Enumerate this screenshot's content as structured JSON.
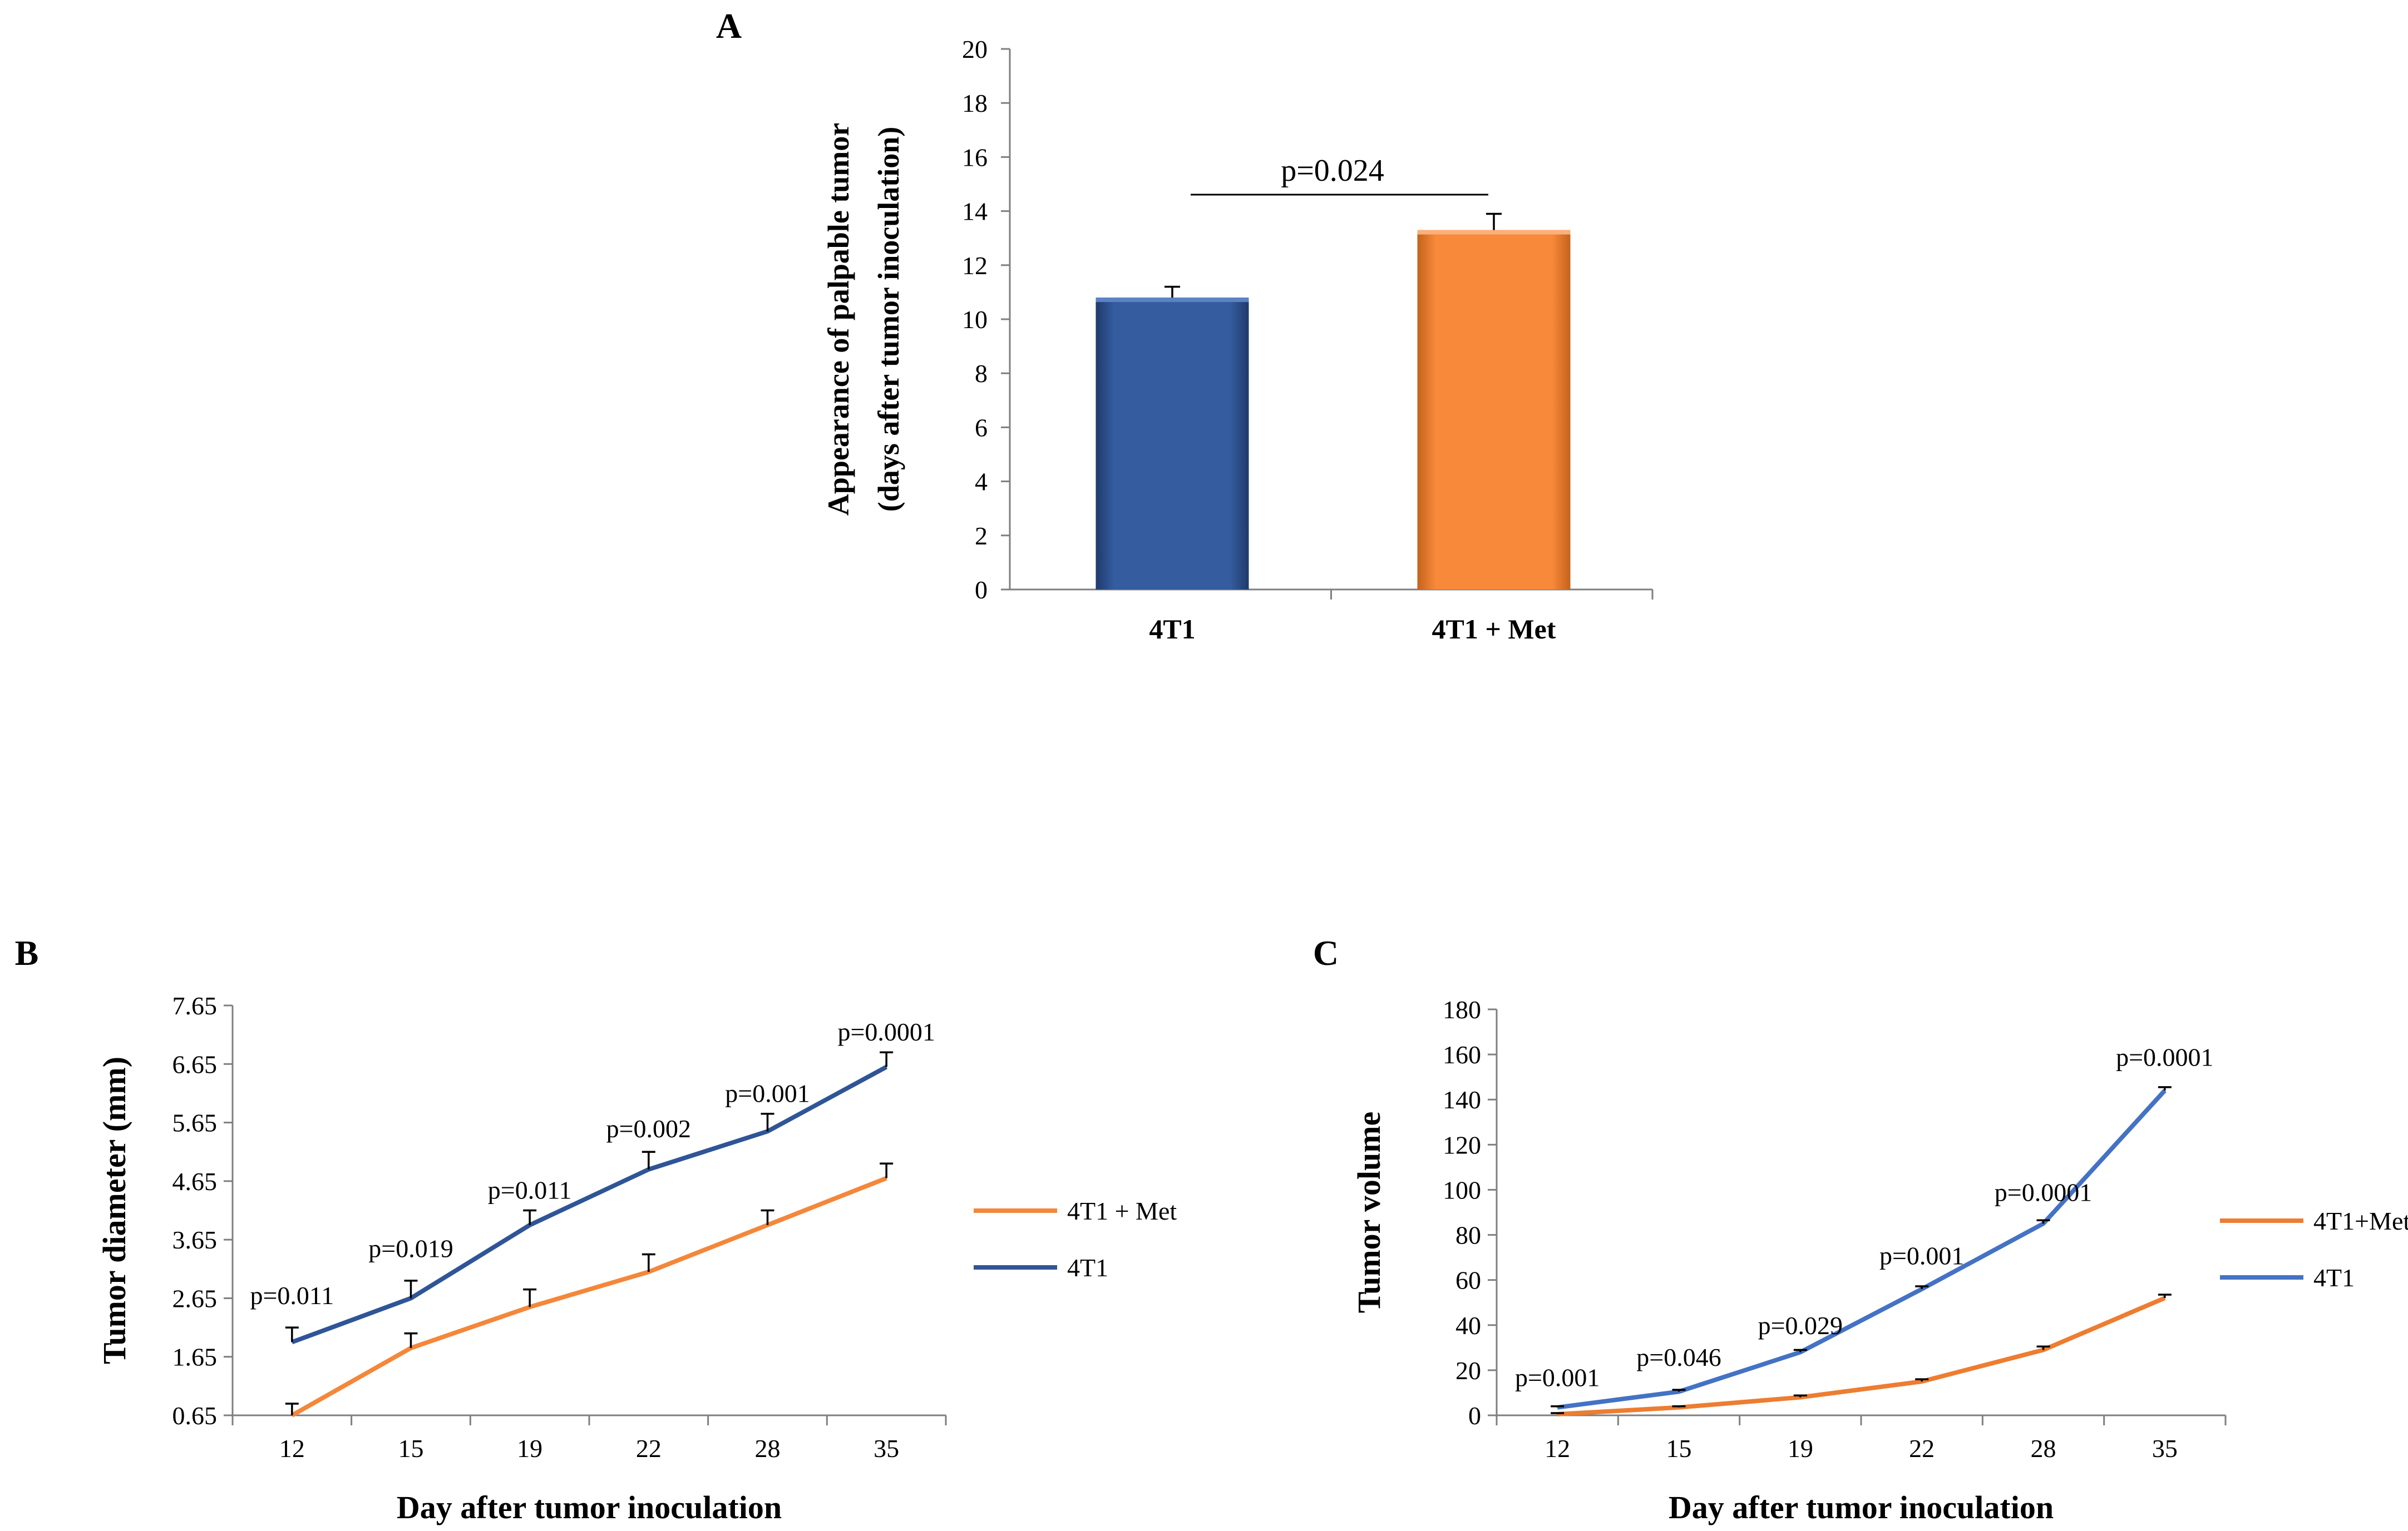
{
  "colors": {
    "blue_bar": "#345c9f",
    "orange_bar": "#f8893a",
    "blue_line": "#2f5597",
    "orange_line": "#f4873a",
    "blue_line_c": "#4472c4",
    "orange_line_c": "#ed7d31"
  },
  "chart_data": [
    {
      "panel": "A",
      "type": "bar",
      "ylabel_line1": "Appearance  of  palpable  tumor",
      "ylabel_line2": "(days after tumor inoculation)",
      "xlabel": "",
      "categories": [
        "4T1",
        "4T1 + Met"
      ],
      "values": [
        10.8,
        13.3
      ],
      "errors": [
        0.4,
        0.6
      ],
      "ylim": [
        0,
        20
      ],
      "yticks": [
        0,
        2,
        4,
        6,
        8,
        10,
        12,
        14,
        16,
        18,
        20
      ],
      "grid": false,
      "annotations": [
        {
          "text": "p=0.024",
          "between": [
            "4T1",
            "4T1 + Met"
          ]
        }
      ]
    },
    {
      "panel": "B",
      "type": "line",
      "ylabel": "Tumor diameter (mm)",
      "xlabel": "Day after tumor inoculation",
      "x": [
        "12",
        "15",
        "19",
        "22",
        "28",
        "35"
      ],
      "ylim": [
        0.65,
        7.65
      ],
      "yticks": [
        "0.65",
        "1.65",
        "2.65",
        "3.65",
        "4.65",
        "5.65",
        "6.65",
        "7.65"
      ],
      "grid": false,
      "legend_position": "right",
      "series": [
        {
          "name": "4T1 + Met",
          "values": [
            0.65,
            1.8,
            2.5,
            3.1,
            3.9,
            4.7
          ],
          "errors": [
            0.2,
            0.25,
            0.3,
            0.3,
            0.25,
            0.25
          ]
        },
        {
          "name": "4T1",
          "values": [
            1.9,
            2.65,
            3.9,
            4.85,
            5.5,
            6.6
          ],
          "errors": [
            0.25,
            0.3,
            0.25,
            0.3,
            0.3,
            0.25
          ]
        }
      ],
      "p_values": [
        "p=0.011",
        "p=0.019",
        "p=0.011",
        "p=0.002",
        "p=0.001",
        "p=0.0001"
      ]
    },
    {
      "panel": "C",
      "type": "line",
      "ylabel": "Tumor volume",
      "xlabel": "Day after tumor inoculation",
      "x": [
        "12",
        "15",
        "19",
        "22",
        "28",
        "35"
      ],
      "ylim": [
        0,
        180
      ],
      "yticks": [
        "0",
        "20",
        "40",
        "60",
        "80",
        "100",
        "120",
        "140",
        "160",
        "180"
      ],
      "grid": false,
      "legend_position": "right",
      "series": [
        {
          "name": "4T1+Met",
          "values": [
            0.5,
            3.5,
            8,
            15,
            29,
            52
          ],
          "errors": [
            0.5,
            0.5,
            0.8,
            1,
            1.5,
            1.5
          ]
        },
        {
          "name": "4T1",
          "values": [
            3.5,
            10.5,
            28,
            56,
            85,
            144
          ],
          "errors": [
            0.5,
            0.8,
            1,
            1.2,
            1.5,
            1.5
          ]
        }
      ],
      "p_values": [
        "p=0.001",
        "p=0.046",
        "p=0.029",
        "p=0.001",
        "p=0.0001",
        "p=0.0001"
      ]
    }
  ]
}
